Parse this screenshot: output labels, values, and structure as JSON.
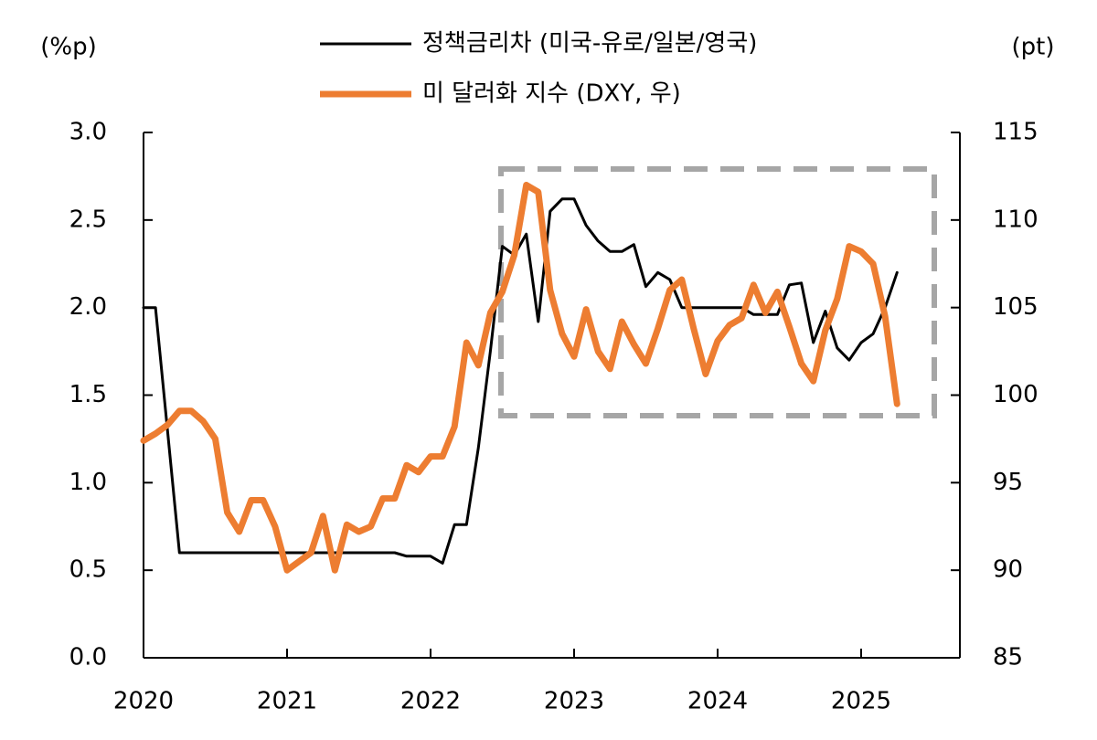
{
  "chart_data": {
    "type": "line",
    "ylabel": "(%p)",
    "y2label": "(pt)",
    "categories": [
      "2020",
      null,
      null,
      null,
      null,
      null,
      null,
      null,
      null,
      null,
      null,
      null,
      "2021",
      null,
      null,
      null,
      null,
      null,
      null,
      null,
      null,
      null,
      null,
      null,
      "2022",
      null,
      null,
      null,
      null,
      null,
      null,
      null,
      null,
      null,
      null,
      null,
      "2023",
      null,
      null,
      null,
      null,
      null,
      null,
      null,
      null,
      null,
      null,
      null,
      "2024",
      null,
      null,
      null,
      null,
      null,
      null,
      null,
      null,
      null,
      null,
      null,
      "2025",
      null,
      null,
      null
    ],
    "series": [
      {
        "name": "정책금리차 (미국-유로/일본/영국)",
        "color": "#000000",
        "axis": "y",
        "values": [
          2.0,
          2.0,
          1.3,
          0.6,
          0.6,
          0.6,
          0.6,
          0.6,
          0.6,
          0.6,
          0.6,
          0.6,
          0.6,
          0.6,
          0.6,
          0.6,
          0.6,
          0.6,
          0.6,
          0.6,
          0.6,
          0.6,
          0.58,
          0.58,
          0.58,
          0.54,
          0.76,
          0.76,
          1.2,
          1.75,
          2.35,
          2.3,
          2.42,
          1.92,
          2.55,
          2.62,
          2.62,
          2.47,
          2.38,
          2.32,
          2.32,
          2.36,
          2.12,
          2.2,
          2.16,
          2.0,
          2.0,
          2.0,
          2.0,
          2.0,
          2.0,
          1.96,
          1.96,
          1.96,
          2.13,
          2.14,
          1.8,
          1.98,
          1.77,
          1.7,
          1.8,
          1.85,
          2.0,
          2.2
        ]
      },
      {
        "name": "미 달러화 지수 (DXY, 우)",
        "color": "#ed7d31",
        "axis": "y2",
        "values": [
          97.4,
          97.8,
          98.3,
          99.1,
          99.1,
          98.5,
          97.5,
          93.3,
          92.2,
          94,
          94,
          92.5,
          90,
          90.5,
          91,
          93.1,
          90,
          92.6,
          92.2,
          92.5,
          94.1,
          94.1,
          96,
          95.6,
          96.5,
          96.5,
          98.2,
          103,
          101.7,
          104.7,
          105.9,
          108,
          112,
          111.6,
          106,
          103.5,
          102.2,
          104.9,
          102.5,
          101.5,
          104.2,
          102.9,
          101.8,
          103.8,
          106,
          106.6,
          103.8,
          101.2,
          103.1,
          104,
          104.4,
          106.3,
          104.7,
          105.9,
          103.9,
          101.8,
          100.8,
          103.7,
          105.5,
          108.5,
          108.2,
          107.5,
          104.5,
          99.5
        ]
      }
    ],
    "ylim": [
      0,
      3
    ],
    "yticks": [
      {
        "value": 0,
        "label": "0.0"
      },
      0.5,
      {
        "value": 1,
        "label": "1.0"
      },
      1.5,
      {
        "value": 2,
        "label": "2.0"
      },
      2.5,
      {
        "value": 3,
        "label": "3.0"
      }
    ],
    "y2lim": [
      85,
      115
    ],
    "y2ticks": [
      85,
      90,
      95,
      100,
      105,
      110,
      115
    ],
    "grid": false
  }
}
